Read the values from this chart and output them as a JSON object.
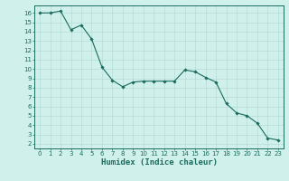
{
  "x": [
    0,
    1,
    2,
    3,
    4,
    5,
    6,
    7,
    8,
    9,
    10,
    11,
    12,
    13,
    14,
    15,
    16,
    17,
    18,
    19,
    20,
    21,
    22,
    23
  ],
  "y": [
    16.0,
    16.0,
    16.2,
    14.2,
    14.7,
    13.2,
    10.2,
    8.8,
    8.1,
    8.6,
    8.7,
    8.7,
    8.7,
    8.7,
    9.9,
    9.7,
    9.1,
    8.6,
    6.3,
    5.3,
    5.0,
    4.2,
    2.6,
    2.4
  ],
  "line_color": "#1a6b5e",
  "marker": "D",
  "markersize": 1.8,
  "linewidth": 0.8,
  "bg_color": "#cff0eb",
  "grid_color": "#b0d8d2",
  "xlabel": "Humidex (Indice chaleur)",
  "xlabel_fontsize": 6.5,
  "tick_fontsize": 5.0,
  "xlim": [
    -0.5,
    23.5
  ],
  "ylim": [
    1.5,
    16.8
  ],
  "yticks": [
    2,
    3,
    4,
    5,
    6,
    7,
    8,
    9,
    10,
    11,
    12,
    13,
    14,
    15,
    16
  ],
  "xticks": [
    0,
    1,
    2,
    3,
    4,
    5,
    6,
    7,
    8,
    9,
    10,
    11,
    12,
    13,
    14,
    15,
    16,
    17,
    18,
    19,
    20,
    21,
    22,
    23
  ]
}
